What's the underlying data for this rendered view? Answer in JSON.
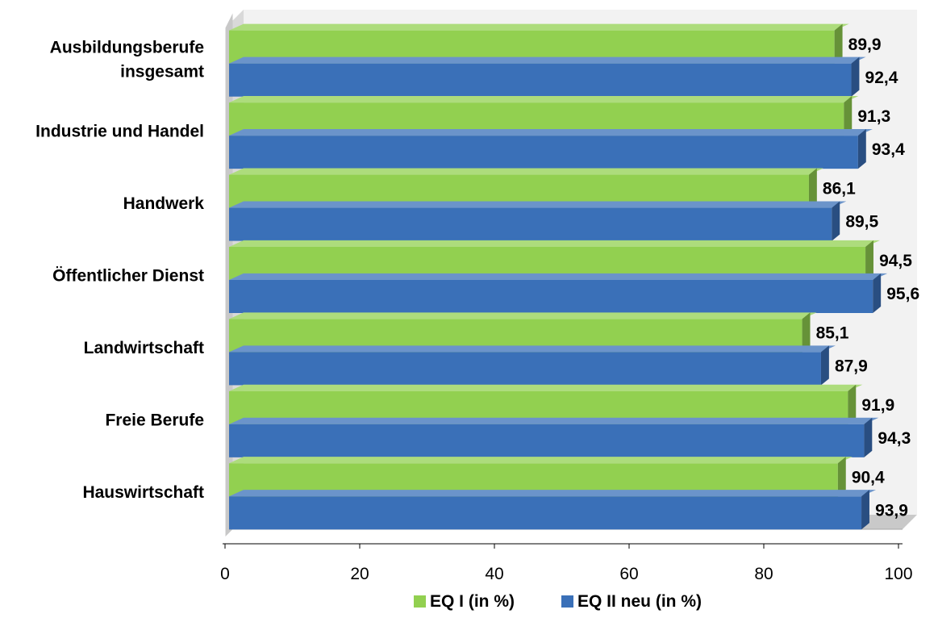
{
  "chart_data": {
    "type": "bar",
    "orientation": "horizontal",
    "style": "3d",
    "categories": [
      [
        "Ausbildungsberufe",
        "insgesamt"
      ],
      [
        "Industrie und Handel"
      ],
      [
        "Handwerk"
      ],
      [
        "Öffentlicher Dienst"
      ],
      [
        "Landwirtschaft"
      ],
      [
        "Freie Berufe"
      ],
      [
        "Hauswirtschaft"
      ]
    ],
    "series": [
      {
        "name": "EQ I (in %)",
        "color": "#92d050",
        "values": [
          89.9,
          91.3,
          86.1,
          94.5,
          85.1,
          91.9,
          90.4
        ],
        "labels": [
          "89,9",
          "91,3",
          "86,1",
          "94,5",
          "85,1",
          "91,9",
          "90,4"
        ]
      },
      {
        "name": "EQ II neu (in %)",
        "color": "#3a70b8",
        "values": [
          92.4,
          93.4,
          89.5,
          95.6,
          87.9,
          94.3,
          93.9
        ],
        "labels": [
          "92,4",
          "93,4",
          "89,5",
          "95,6",
          "87,9",
          "94,3",
          "93,9"
        ]
      }
    ],
    "xlim": [
      0,
      100
    ],
    "x_ticks": [
      0,
      20,
      40,
      60,
      80,
      100
    ],
    "grid": false,
    "legend_position": "bottom",
    "title": "",
    "xlabel": "",
    "ylabel": ""
  }
}
